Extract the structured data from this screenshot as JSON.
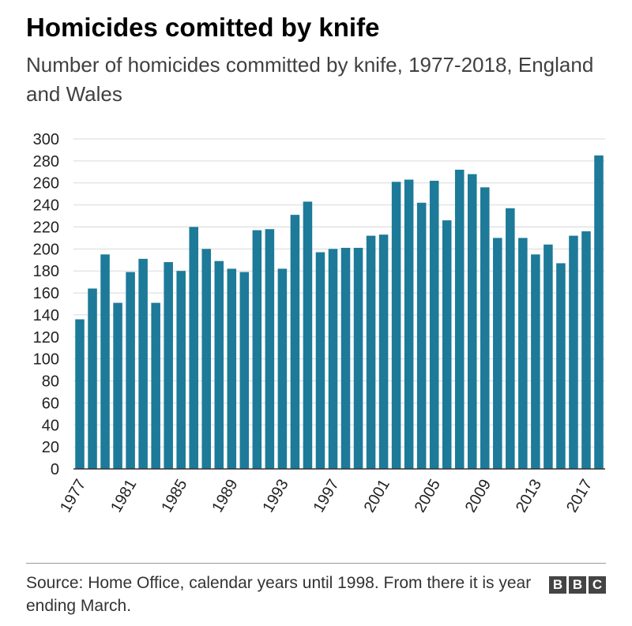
{
  "chart_data": {
    "type": "bar",
    "title": "Homicides comitted by knife",
    "subtitle": "Number of homicides committed by knife, 1977-2018, England and Wales",
    "xlabel": "",
    "ylabel": "",
    "ylim": [
      0,
      300
    ],
    "yticks": [
      0,
      20,
      40,
      60,
      80,
      100,
      120,
      140,
      160,
      180,
      200,
      220,
      240,
      260,
      280,
      300
    ],
    "xtick_labels": [
      "1977",
      "1981",
      "1985",
      "1989",
      "1993",
      "1997",
      "2001",
      "2005",
      "2009",
      "2013",
      "2017"
    ],
    "categories": [
      "1977",
      "1978",
      "1979",
      "1980",
      "1981",
      "1982",
      "1983",
      "1984",
      "1985",
      "1986",
      "1987",
      "1988",
      "1989",
      "1990",
      "1991",
      "1992",
      "1993",
      "1994",
      "1995",
      "1996",
      "1997",
      "1998",
      "1999",
      "2000",
      "2001",
      "2002",
      "2003",
      "2004",
      "2005",
      "2006",
      "2007",
      "2008",
      "2009",
      "2010",
      "2011",
      "2012",
      "2013",
      "2014",
      "2015",
      "2016",
      "2017",
      "2018"
    ],
    "values": [
      136,
      164,
      195,
      151,
      179,
      191,
      151,
      188,
      180,
      220,
      200,
      189,
      182,
      179,
      217,
      218,
      182,
      231,
      243,
      197,
      200,
      201,
      201,
      212,
      213,
      261,
      263,
      242,
      262,
      226,
      272,
      268,
      256,
      210,
      237,
      210,
      195,
      204,
      187,
      212,
      216,
      285
    ],
    "color": "#1d7a99",
    "source": "Source: Home Office, calendar years until 1998. From there it is year ending March.",
    "logo_text": [
      "B",
      "B",
      "C"
    ]
  }
}
